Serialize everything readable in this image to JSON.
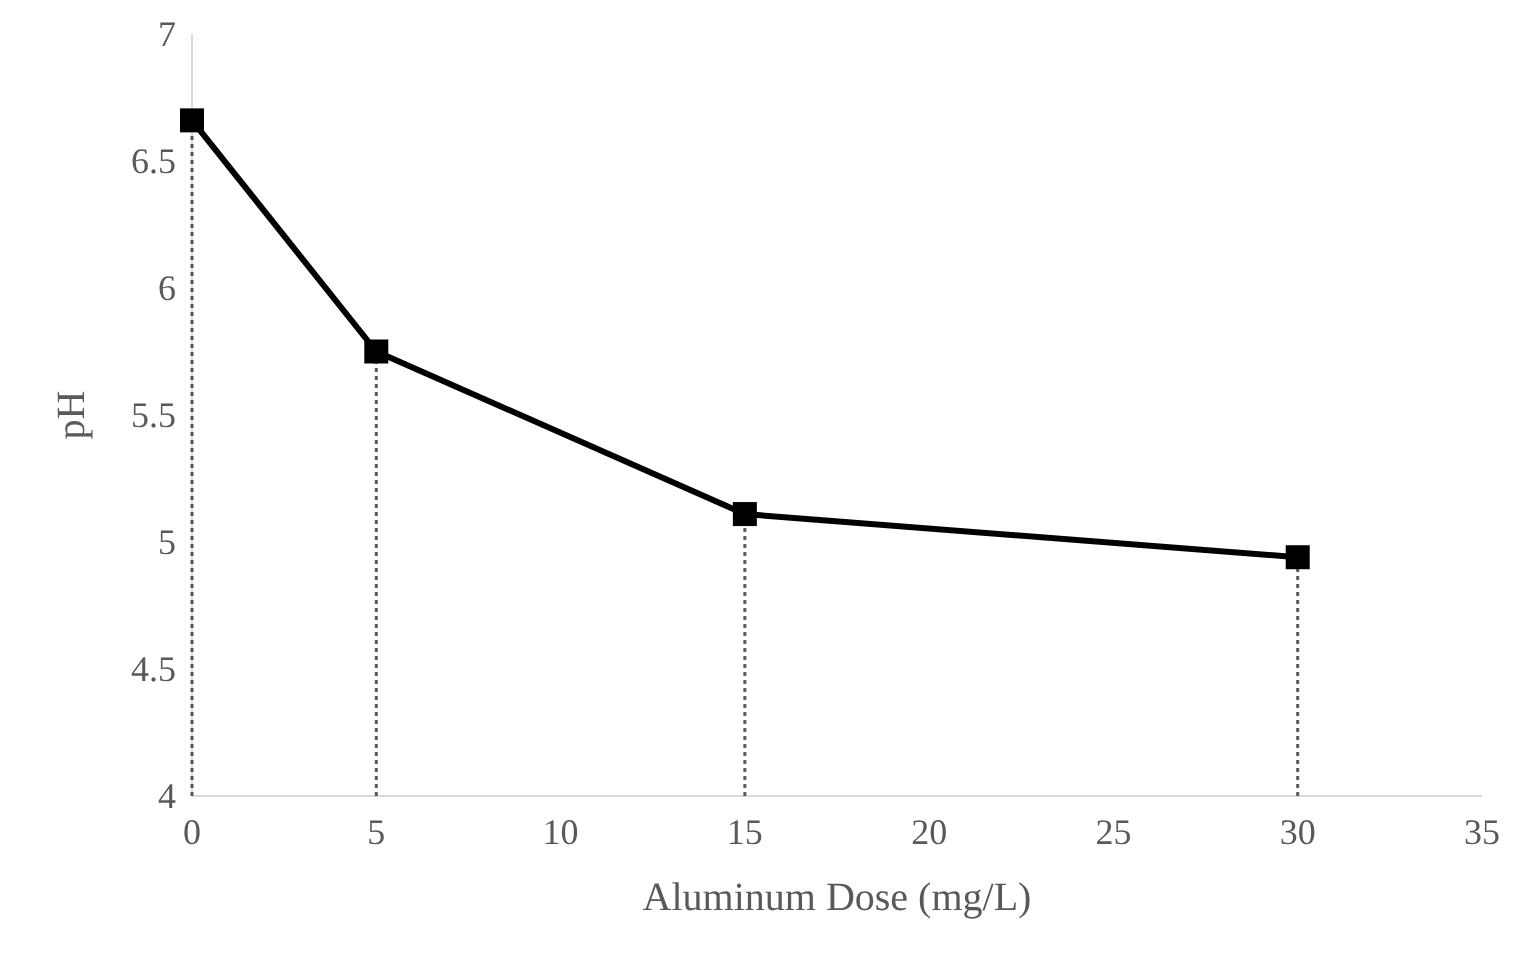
{
  "chart_data": {
    "type": "line",
    "xlabel": "Aluminum Dose (mg/L)",
    "ylabel": "pH",
    "x": [
      0,
      5,
      15,
      30
    ],
    "series": [
      {
        "color": "#000000",
        "values": [
          6.66,
          5.75,
          5.11,
          4.94
        ]
      }
    ],
    "xlim": [
      0,
      35
    ],
    "xticks": [
      0,
      5,
      10,
      15,
      20,
      25,
      30,
      35
    ],
    "ylim": [
      4,
      7
    ],
    "yticks": [
      4,
      4.5,
      5,
      5.5,
      6,
      6.5,
      7
    ],
    "grid": false,
    "marker": "square",
    "line_style": "solid",
    "ref_lines": [
      {
        "axis": "x",
        "value": 0,
        "color": "#595959",
        "line_style": "dotted"
      },
      {
        "axis": "x",
        "value": 5,
        "color": "#595959",
        "line_style": "dotted"
      },
      {
        "axis": "x",
        "value": 15,
        "color": "#595959",
        "line_style": "dotted"
      },
      {
        "axis": "x",
        "value": 30,
        "color": "#595959",
        "line_style": "dotted"
      }
    ]
  }
}
